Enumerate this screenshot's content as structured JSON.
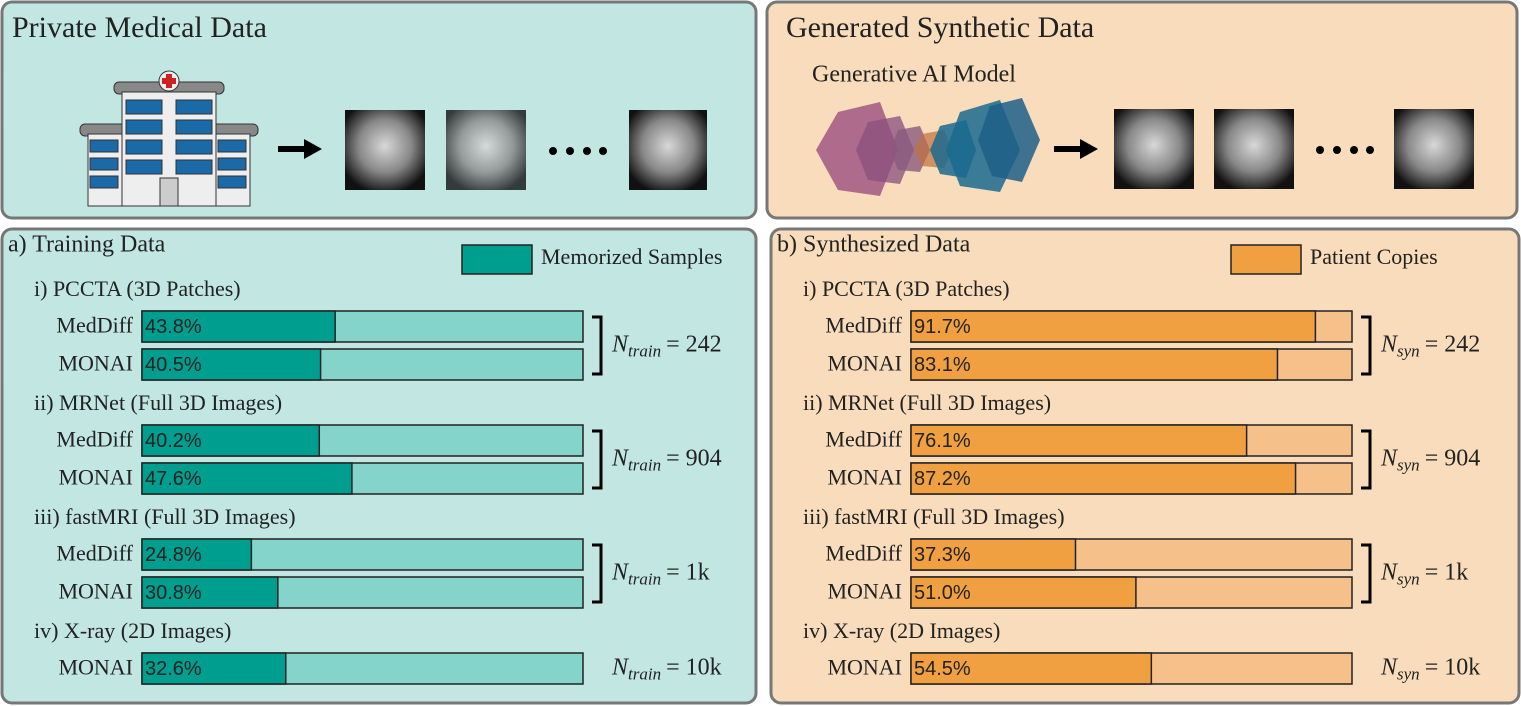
{
  "top_panels": [
    {
      "title": "Private Medical Data"
    },
    {
      "title": "Generated Synthetic Data",
      "model_label": "Generative AI Model"
    }
  ],
  "chart_data": [
    {
      "type": "bar",
      "title": "a) Training Data",
      "series_name": "Memorized Samples",
      "color": "#009e8e",
      "track_color": "#84d4cc",
      "panel_color": "#c2e7e3",
      "xlim": [
        0,
        100
      ],
      "groups": [
        {
          "label": "i) PCCTA (3D Patches)",
          "categories": [
            "MedDiff",
            "MONAI"
          ],
          "values": [
            43.8,
            40.5
          ],
          "value_labels": [
            "43.8%",
            "40.5%"
          ],
          "n_label": [
            "N",
            "train",
            "= 242"
          ]
        },
        {
          "label": "ii) MRNet (Full 3D Images)",
          "categories": [
            "MedDiff",
            "MONAI"
          ],
          "values": [
            40.2,
            47.6
          ],
          "value_labels": [
            "40.2%",
            "47.6%"
          ],
          "n_label": [
            "N",
            "train",
            "= 904"
          ]
        },
        {
          "label": "iii) fastMRI (Full 3D Images)",
          "categories": [
            "MedDiff",
            "MONAI"
          ],
          "values": [
            24.8,
            30.8
          ],
          "value_labels": [
            "24.8%",
            "30.8%"
          ],
          "n_label": [
            "N",
            "train",
            "= 1k"
          ]
        },
        {
          "label": "iv) X-ray (2D Images)",
          "categories": [
            "MONAI"
          ],
          "values": [
            32.6
          ],
          "value_labels": [
            "32.6%"
          ],
          "n_label": [
            "N",
            "train",
            "= 10k"
          ]
        }
      ]
    },
    {
      "type": "bar",
      "title": "b) Synthesized Data",
      "series_name": "Patient Copies",
      "color": "#f0a040",
      "track_color": "#f5c08a",
      "panel_color": "#f8dcbc",
      "xlim": [
        0,
        100
      ],
      "groups": [
        {
          "label": "i) PCCTA (3D Patches)",
          "categories": [
            "MedDiff",
            "MONAI"
          ],
          "values": [
            91.7,
            83.1
          ],
          "value_labels": [
            "91.7%",
            "83.1%"
          ],
          "n_label": [
            "N",
            "syn",
            "= 242"
          ]
        },
        {
          "label": "ii) MRNet (Full 3D Images)",
          "categories": [
            "MedDiff",
            "MONAI"
          ],
          "values": [
            76.1,
            87.2
          ],
          "value_labels": [
            "76.1%",
            "87.2%"
          ],
          "n_label": [
            "N",
            "syn",
            "= 904"
          ]
        },
        {
          "label": "iii) fastMRI (Full 3D Images)",
          "categories": [
            "MedDiff",
            "MONAI"
          ],
          "values": [
            37.3,
            51.0
          ],
          "value_labels": [
            "37.3%",
            "51.0%"
          ],
          "n_label": [
            "N",
            "syn",
            "= 1k"
          ]
        },
        {
          "label": "iv) X-ray (2D Images)",
          "categories": [
            "MONAI"
          ],
          "values": [
            54.5
          ],
          "value_labels": [
            "54.5%"
          ],
          "n_label": [
            "N",
            "syn",
            "= 10k"
          ]
        }
      ]
    }
  ]
}
